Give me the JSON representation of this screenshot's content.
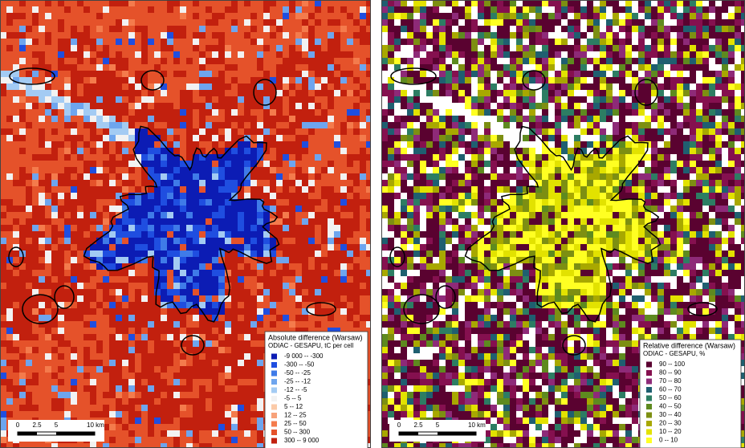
{
  "left_map": {
    "legend": {
      "title": "Absolute difference (Warsaw)",
      "subtitle": "ODIAC - GESAPU, tC per cell",
      "entries": [
        {
          "label": "-9 000 -- -300",
          "color": "#0c1cb4"
        },
        {
          "label": "-300 -- -50",
          "color": "#1f4ee0"
        },
        {
          "label": "-50 -- -25",
          "color": "#3f7be8"
        },
        {
          "label": "-25 -- -12",
          "color": "#6ea5ee"
        },
        {
          "label": "-12 -- -5",
          "color": "#a3cbf3"
        },
        {
          "label": "-5 -- 5",
          "color": "#f2f2f2"
        },
        {
          "label": "5 -- 12",
          "color": "#fbcaa8"
        },
        {
          "label": "12 -- 25",
          "color": "#f7a27a"
        },
        {
          "label": "25 -- 50",
          "color": "#f47b4c"
        },
        {
          "label": "50 -- 300",
          "color": "#e5522a"
        },
        {
          "label": "300 -- 9 000",
          "color": "#c2200e"
        }
      ]
    },
    "scale_bar": {
      "labels": [
        "0",
        "2.5",
        "5",
        "10 km"
      ]
    }
  },
  "right_map": {
    "legend": {
      "title": "Relative difference (Warsaw)",
      "subtitle": "ODIAC - GESAPU, %",
      "entries": [
        {
          "label": "90 -- 100",
          "color": "#5a0230"
        },
        {
          "label": "80 -- 90",
          "color": "#85104f"
        },
        {
          "label": "70 -- 80",
          "color": "#8e2a78"
        },
        {
          "label": "60 -- 70",
          "color": "#1f5f70"
        },
        {
          "label": "50 -- 60",
          "color": "#2d7d63"
        },
        {
          "label": "40 -- 50",
          "color": "#5e8a1f"
        },
        {
          "label": "30 -- 40",
          "color": "#7d8f12"
        },
        {
          "label": "20 -- 30",
          "color": "#a8a800"
        },
        {
          "label": "10 -- 20",
          "color": "#e2e200"
        },
        {
          "label": "0 -- 10",
          "color": "#ffff22"
        }
      ]
    },
    "scale_bar": {
      "labels": [
        "0",
        "2.5",
        "5",
        "10 km"
      ]
    }
  }
}
